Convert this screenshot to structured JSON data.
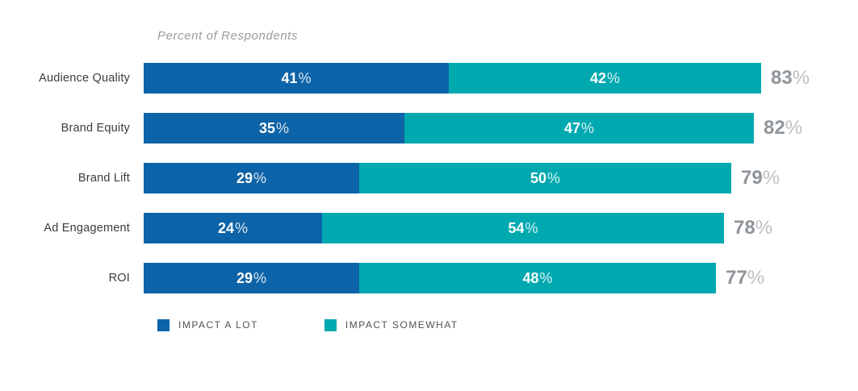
{
  "chart_data": {
    "type": "bar",
    "stacked": true,
    "orientation": "horizontal",
    "title": "Percent of Respondents",
    "categories": [
      "Audience Quality",
      "Brand Equity",
      "Brand Lift",
      "Ad Engagement",
      "ROI"
    ],
    "series": [
      {
        "name": "IMPACT A LOT",
        "color": "#0D63A7",
        "values": [
          41,
          35,
          29,
          24,
          29
        ]
      },
      {
        "name": "IMPACT SOMEWHAT",
        "color": "#00A9B0",
        "values": [
          42,
          47,
          50,
          54,
          48
        ]
      }
    ],
    "totals": [
      83,
      82,
      79,
      78,
      77
    ],
    "percent_sign": "%",
    "scale_max": 83,
    "grid": false,
    "legend_position": "bottom"
  },
  "colors": {
    "impact_a_lot": "#0D63A7",
    "impact_somewhat": "#00A9B0",
    "title_text": "#9B9B9B",
    "category_text": "#3C3C3C",
    "total_number": "#8F959A",
    "total_percent_sign": "#BCC0C4",
    "legend_text": "#4E5256",
    "background": "#FFFFFF"
  }
}
